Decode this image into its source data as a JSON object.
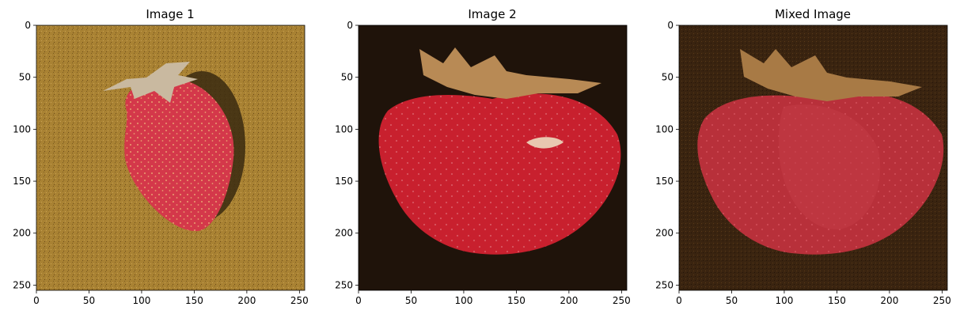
{
  "chart_data": [
    {
      "type": "image",
      "title": "Image 1",
      "xlim": [
        0,
        255
      ],
      "ylim": [
        255,
        0
      ],
      "xticks": [
        0,
        50,
        100,
        150,
        200,
        250
      ],
      "yticks": [
        0,
        50,
        100,
        150,
        200,
        250
      ],
      "background_color": "#a98233",
      "subject": "strawberry-side",
      "colors": {
        "fruit": "#d4384a",
        "shadow": "#3a2a10",
        "leaf": "#c9b9a0"
      }
    },
    {
      "type": "image",
      "title": "Image 2",
      "xlim": [
        0,
        255
      ],
      "ylim": [
        255,
        0
      ],
      "xticks": [
        0,
        50,
        100,
        150,
        200,
        250
      ],
      "yticks": [
        0,
        50,
        100,
        150,
        200,
        250
      ],
      "background_color": "#1f130a",
      "subject": "strawberry-front",
      "colors": {
        "fruit": "#c8202e",
        "leaf": "#b88a55"
      }
    },
    {
      "type": "image",
      "title": "Mixed Image",
      "xlim": [
        0,
        255
      ],
      "ylim": [
        255,
        0
      ],
      "xticks": [
        0,
        50,
        100,
        150,
        200,
        250
      ],
      "yticks": [
        0,
        50,
        100,
        150,
        200,
        250
      ],
      "background_color": "#3a2410",
      "subject": "strawberry-blend",
      "colors": {
        "fruit": "#b8303a",
        "leaf": "#a87a45"
      }
    }
  ]
}
